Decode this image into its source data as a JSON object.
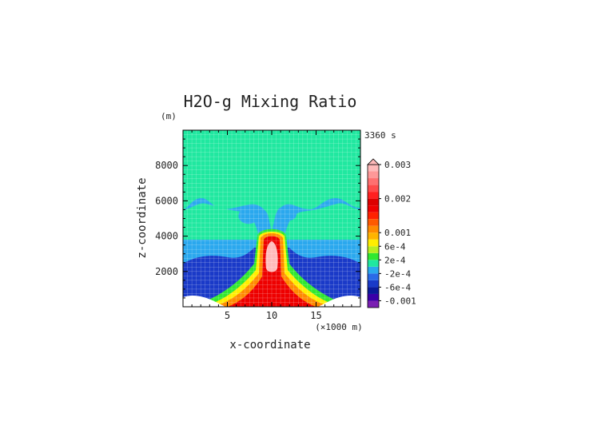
{
  "chart_data": {
    "type": "heatmap",
    "title": "H2O-g Mixing Ratio",
    "xlabel": "x-coordinate",
    "ylabel": "z-coordinate",
    "x_unit": "(×1000 m)",
    "y_unit": "(m)",
    "time_label": "3360 s",
    "xlim": [
      0,
      20
    ],
    "ylim": [
      0,
      10000
    ],
    "x_ticks": [
      5,
      10,
      15
    ],
    "y_ticks": [
      2000,
      4000,
      6000,
      8000
    ],
    "grid": true,
    "colorbar": {
      "placement": "right",
      "tick_labels": [
        "0.003",
        "0.002",
        "0.001",
        "6e-4",
        "2e-4",
        "-2e-4",
        "-6e-4",
        "-0.001"
      ],
      "tick_values": [
        0.003,
        0.002,
        0.001,
        0.0006,
        0.0002,
        -0.0002,
        -0.0006,
        -0.001
      ],
      "levels": [
        {
          "min": -0.0012,
          "max": -0.001,
          "color": "#7a1fb2"
        },
        {
          "min": -0.001,
          "max": -0.0008,
          "color": "#3a00a8"
        },
        {
          "min": -0.0008,
          "max": -0.0006,
          "color": "#0a1a9a"
        },
        {
          "min": -0.0006,
          "max": -0.0004,
          "color": "#1a3ac8"
        },
        {
          "min": -0.0004,
          "max": -0.0002,
          "color": "#2a6ae8"
        },
        {
          "min": -0.0002,
          "max": 0.0,
          "color": "#2aa8ee"
        },
        {
          "min": 0.0,
          "max": 0.0002,
          "color": "#20e8a0"
        },
        {
          "min": 0.0002,
          "max": 0.0004,
          "color": "#30e830"
        },
        {
          "min": 0.0004,
          "max": 0.0006,
          "color": "#b8ee20"
        },
        {
          "min": 0.0006,
          "max": 0.0008,
          "color": "#ffee00"
        },
        {
          "min": 0.0008,
          "max": 0.001,
          "color": "#ffb400"
        },
        {
          "min": 0.001,
          "max": 0.0012,
          "color": "#ff8a00"
        },
        {
          "min": 0.0012,
          "max": 0.0014,
          "color": "#ff5a00"
        },
        {
          "min": 0.0014,
          "max": 0.0016,
          "color": "#ff2200"
        },
        {
          "min": 0.0016,
          "max": 0.0018,
          "color": "#ee0000"
        },
        {
          "min": 0.0018,
          "max": 0.002,
          "color": "#dd0000"
        },
        {
          "min": 0.002,
          "max": 0.0022,
          "color": "#ff2020"
        },
        {
          "min": 0.0022,
          "max": 0.0024,
          "color": "#ff4a4a"
        },
        {
          "min": 0.0024,
          "max": 0.0026,
          "color": "#ff7070"
        },
        {
          "min": 0.0026,
          "max": 0.0028,
          "color": "#ff9898"
        },
        {
          "min": 0.0028,
          "max": 0.003,
          "color": "#ffbaba"
        }
      ]
    },
    "regions": [
      {
        "name": "background",
        "color": "#2aa8ee"
      },
      {
        "name": "upper-layer",
        "color": "#20e8a0"
      },
      {
        "name": "near-surface-band",
        "color": "#1a3ac8"
      },
      {
        "name": "plume-outer",
        "color": "#30e830"
      },
      {
        "name": "plume-yellow",
        "color": "#ffee00"
      },
      {
        "name": "plume-orange",
        "color": "#ff8a00"
      },
      {
        "name": "plume-core",
        "color": "#ee0000"
      },
      {
        "name": "plume-peak",
        "color": "#ffbaba"
      }
    ]
  }
}
